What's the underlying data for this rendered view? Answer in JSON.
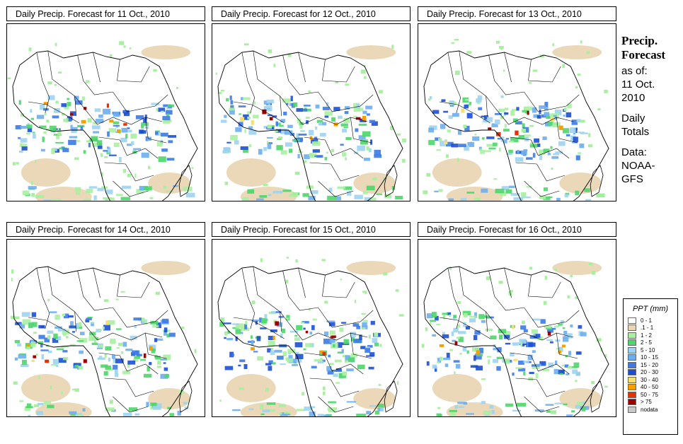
{
  "panels": [
    {
      "title": "Daily Precip. Forecast for  11 Oct., 2010",
      "variant": 0
    },
    {
      "title": "Daily Precip. Forecast for  12 Oct., 2010",
      "variant": 1
    },
    {
      "title": "Daily Precip. Forecast for  13 Oct., 2010",
      "variant": 2
    },
    {
      "title": "Daily Precip. Forecast for  14 Oct., 2010",
      "variant": 3
    },
    {
      "title": "Daily Precip. Forecast for  15 Oct., 2010",
      "variant": 4
    },
    {
      "title": "Daily Precip. Forecast for  16 Oct., 2010",
      "variant": 5
    }
  ],
  "info": {
    "title_line1": "Precip.",
    "title_line2": "Forecast",
    "asof": "as of:",
    "date_line1": "11 Oct.",
    "date_line2": "2010",
    "daily_line1": "Daily",
    "daily_line2": "Totals",
    "data_line1": "Data:",
    "data_line2": "NOAA-",
    "data_line3": "GFS"
  },
  "legend": {
    "title": "PPT (mm)",
    "items": [
      {
        "label": "0 - 1",
        "color": "#ffffff"
      },
      {
        "label": ".1 - 1",
        "color": "#ead6b4"
      },
      {
        "label": "1 - 2",
        "color": "#a8f0a0"
      },
      {
        "label": "2 - 5",
        "color": "#4ed66a"
      },
      {
        "label": "5 - 10",
        "color": "#9fd4f0"
      },
      {
        "label": "10 - 15",
        "color": "#6eaef0"
      },
      {
        "label": "15 - 20",
        "color": "#3c7ae6"
      },
      {
        "label": "20 - 30",
        "color": "#1c4fd2"
      },
      {
        "label": "30 - 40",
        "color": "#f6e070"
      },
      {
        "label": "40 - 50",
        "color": "#f6a000"
      },
      {
        "label": "50 - 75",
        "color": "#e83000"
      },
      {
        "label": "> 75",
        "color": "#a00000"
      },
      {
        "label": "nodata",
        "color": "#c8c8c8"
      }
    ]
  }
}
